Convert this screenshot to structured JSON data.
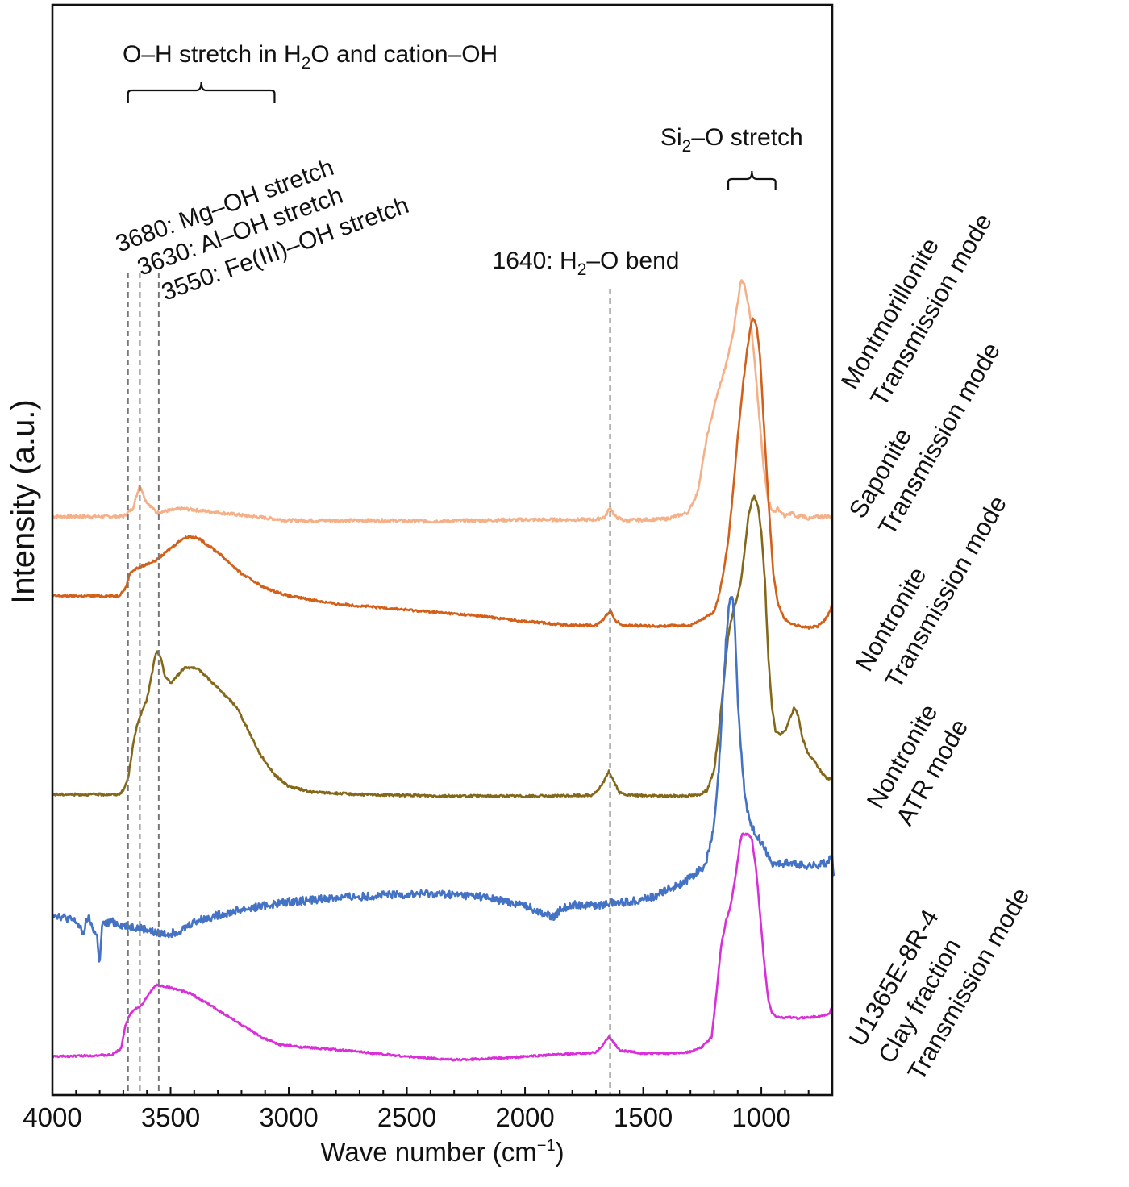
{
  "chart_data": {
    "type": "line",
    "xlabel": {
      "text": "Wave number (cm",
      "sup": "−1",
      "tail": ")"
    },
    "ylabel": "Intensity (a.u.)",
    "xlim": [
      4000,
      700
    ],
    "x_ticks": [
      4000,
      3500,
      3000,
      2500,
      2000,
      1500,
      1000
    ],
    "x_tick_labels": [
      "4000",
      "3500",
      "3000",
      "2500",
      "2000",
      "1500",
      "1000"
    ],
    "grid": false,
    "reference_lines": [
      3680,
      3630,
      3550,
      1640
    ],
    "annotations": {
      "oh_group": {
        "pre": "O–H stretch in H",
        "sub": "2",
        "post": "O and cation–OH",
        "range": [
          3680,
          3060
        ]
      },
      "si_group": {
        "pre": "Si",
        "sub": "2",
        "post": "–O stretch",
        "range": [
          1140,
          940
        ]
      },
      "mg": "3680: Mg–OH stretch",
      "al": "3630: Al–OH stretch",
      "fe": "3550: Fe(III)–OH stretch",
      "bend": {
        "pre": "1640: H",
        "sub": "2",
        "post": "–O bend"
      }
    },
    "series": [
      {
        "key": "montmorillonite",
        "label_lines": [
          "Montmorillonite",
          "Transmission mode"
        ],
        "color": "#f5b088",
        "noise": 0.002,
        "points": [
          [
            4000,
            0.7
          ],
          [
            3700,
            0.7
          ],
          [
            3660,
            0.71
          ],
          [
            3630,
            0.74
          ],
          [
            3605,
            0.72
          ],
          [
            3560,
            0.705
          ],
          [
            3450,
            0.71
          ],
          [
            3300,
            0.705
          ],
          [
            3000,
            0.695
          ],
          [
            2600,
            0.695
          ],
          [
            2400,
            0.694
          ],
          [
            2000,
            0.696
          ],
          [
            1700,
            0.696
          ],
          [
            1660,
            0.7
          ],
          [
            1640,
            0.712
          ],
          [
            1620,
            0.7
          ],
          [
            1580,
            0.695
          ],
          [
            1400,
            0.697
          ],
          [
            1310,
            0.705
          ],
          [
            1270,
            0.73
          ],
          [
            1230,
            0.8
          ],
          [
            1190,
            0.85
          ],
          [
            1150,
            0.89
          ],
          [
            1120,
            0.93
          ],
          [
            1100,
            0.97
          ],
          [
            1085,
            1.0
          ],
          [
            1070,
            0.99
          ],
          [
            1050,
            0.96
          ],
          [
            1030,
            0.9
          ],
          [
            1010,
            0.83
          ],
          [
            990,
            0.76
          ],
          [
            970,
            0.72
          ],
          [
            950,
            0.705
          ],
          [
            930,
            0.71
          ],
          [
            900,
            0.7
          ],
          [
            870,
            0.705
          ],
          [
            850,
            0.698
          ],
          [
            830,
            0.702
          ],
          [
            800,
            0.697
          ],
          [
            760,
            0.7
          ],
          [
            700,
            0.7
          ]
        ]
      },
      {
        "key": "saponite",
        "label_lines": [
          "Saponite",
          "Transmission mode"
        ],
        "color": "#d2601a",
        "noise": 0.0015,
        "points": [
          [
            4000,
            0.6
          ],
          [
            3720,
            0.6
          ],
          [
            3690,
            0.61
          ],
          [
            3670,
            0.63
          ],
          [
            3640,
            0.635
          ],
          [
            3600,
            0.64
          ],
          [
            3560,
            0.645
          ],
          [
            3500,
            0.66
          ],
          [
            3450,
            0.672
          ],
          [
            3420,
            0.675
          ],
          [
            3380,
            0.672
          ],
          [
            3300,
            0.655
          ],
          [
            3200,
            0.628
          ],
          [
            3100,
            0.61
          ],
          [
            3000,
            0.6
          ],
          [
            2800,
            0.59
          ],
          [
            2600,
            0.585
          ],
          [
            2400,
            0.58
          ],
          [
            2200,
            0.575
          ],
          [
            2000,
            0.568
          ],
          [
            1800,
            0.563
          ],
          [
            1700,
            0.563
          ],
          [
            1670,
            0.57
          ],
          [
            1640,
            0.582
          ],
          [
            1615,
            0.568
          ],
          [
            1580,
            0.563
          ],
          [
            1450,
            0.562
          ],
          [
            1300,
            0.563
          ],
          [
            1250,
            0.57
          ],
          [
            1200,
            0.58
          ],
          [
            1180,
            0.6
          ],
          [
            1160,
            0.63
          ],
          [
            1140,
            0.67
          ],
          [
            1120,
            0.73
          ],
          [
            1100,
            0.8
          ],
          [
            1080,
            0.86
          ],
          [
            1060,
            0.91
          ],
          [
            1045,
            0.94
          ],
          [
            1035,
            0.95
          ],
          [
            1020,
            0.94
          ],
          [
            1005,
            0.9
          ],
          [
            990,
            0.82
          ],
          [
            970,
            0.72
          ],
          [
            950,
            0.63
          ],
          [
            930,
            0.59
          ],
          [
            900,
            0.57
          ],
          [
            870,
            0.565
          ],
          [
            850,
            0.563
          ],
          [
            800,
            0.56
          ],
          [
            760,
            0.562
          ],
          [
            730,
            0.57
          ],
          [
            710,
            0.58
          ],
          [
            700,
            0.59
          ]
        ]
      },
      {
        "key": "nontronite_trans",
        "label_lines": [
          "Nontronite",
          "Transmission mode"
        ],
        "color": "#84681a",
        "noise": 0.0015,
        "points": [
          [
            4000,
            0.35
          ],
          [
            3720,
            0.35
          ],
          [
            3700,
            0.355
          ],
          [
            3680,
            0.37
          ],
          [
            3660,
            0.41
          ],
          [
            3640,
            0.44
          ],
          [
            3620,
            0.455
          ],
          [
            3600,
            0.47
          ],
          [
            3580,
            0.5
          ],
          [
            3565,
            0.525
          ],
          [
            3555,
            0.53
          ],
          [
            3540,
            0.52
          ],
          [
            3525,
            0.5
          ],
          [
            3500,
            0.49
          ],
          [
            3470,
            0.5
          ],
          [
            3440,
            0.51
          ],
          [
            3410,
            0.51
          ],
          [
            3370,
            0.505
          ],
          [
            3320,
            0.49
          ],
          [
            3270,
            0.475
          ],
          [
            3220,
            0.46
          ],
          [
            3170,
            0.43
          ],
          [
            3120,
            0.4
          ],
          [
            3060,
            0.375
          ],
          [
            3000,
            0.36
          ],
          [
            2900,
            0.353
          ],
          [
            2700,
            0.35
          ],
          [
            2500,
            0.349
          ],
          [
            2300,
            0.348
          ],
          [
            2100,
            0.348
          ],
          [
            1900,
            0.348
          ],
          [
            1720,
            0.349
          ],
          [
            1690,
            0.355
          ],
          [
            1660,
            0.37
          ],
          [
            1645,
            0.38
          ],
          [
            1630,
            0.37
          ],
          [
            1600,
            0.352
          ],
          [
            1560,
            0.349
          ],
          [
            1400,
            0.348
          ],
          [
            1270,
            0.349
          ],
          [
            1230,
            0.355
          ],
          [
            1200,
            0.38
          ],
          [
            1180,
            0.43
          ],
          [
            1160,
            0.49
          ],
          [
            1140,
            0.55
          ],
          [
            1120,
            0.58
          ],
          [
            1100,
            0.6
          ],
          [
            1085,
            0.62
          ],
          [
            1070,
            0.66
          ],
          [
            1055,
            0.7
          ],
          [
            1040,
            0.72
          ],
          [
            1030,
            0.725
          ],
          [
            1015,
            0.715
          ],
          [
            1000,
            0.68
          ],
          [
            985,
            0.62
          ],
          [
            970,
            0.52
          ],
          [
            955,
            0.46
          ],
          [
            940,
            0.43
          ],
          [
            920,
            0.425
          ],
          [
            900,
            0.43
          ],
          [
            880,
            0.445
          ],
          [
            860,
            0.46
          ],
          [
            845,
            0.45
          ],
          [
            825,
            0.42
          ],
          [
            800,
            0.4
          ],
          [
            770,
            0.39
          ],
          [
            740,
            0.375
          ],
          [
            720,
            0.37
          ],
          [
            700,
            0.37
          ]
        ]
      },
      {
        "key": "nontronite_atr",
        "label_lines": [
          "Nontronite",
          "ATR mode"
        ],
        "color": "#4472c4",
        "noise": 0.005,
        "points": [
          [
            4000,
            0.2
          ],
          [
            3950,
            0.195
          ],
          [
            3900,
            0.19
          ],
          [
            3870,
            0.175
          ],
          [
            3850,
            0.195
          ],
          [
            3810,
            0.17
          ],
          [
            3800,
            0.135
          ],
          [
            3790,
            0.185
          ],
          [
            3750,
            0.19
          ],
          [
            3700,
            0.185
          ],
          [
            3650,
            0.183
          ],
          [
            3600,
            0.18
          ],
          [
            3560,
            0.175
          ],
          [
            3500,
            0.175
          ],
          [
            3450,
            0.18
          ],
          [
            3400,
            0.19
          ],
          [
            3300,
            0.198
          ],
          [
            3200,
            0.205
          ],
          [
            3000,
            0.215
          ],
          [
            2800,
            0.22
          ],
          [
            2600,
            0.223
          ],
          [
            2400,
            0.225
          ],
          [
            2200,
            0.222
          ],
          [
            2100,
            0.216
          ],
          [
            2000,
            0.21
          ],
          [
            1920,
            0.2
          ],
          [
            1880,
            0.195
          ],
          [
            1850,
            0.205
          ],
          [
            1800,
            0.212
          ],
          [
            1700,
            0.21
          ],
          [
            1650,
            0.213
          ],
          [
            1550,
            0.215
          ],
          [
            1450,
            0.222
          ],
          [
            1400,
            0.23
          ],
          [
            1350,
            0.236
          ],
          [
            1300,
            0.245
          ],
          [
            1260,
            0.255
          ],
          [
            1240,
            0.26
          ],
          [
            1220,
            0.28
          ],
          [
            1200,
            0.31
          ],
          [
            1180,
            0.38
          ],
          [
            1165,
            0.46
          ],
          [
            1150,
            0.54
          ],
          [
            1140,
            0.58
          ],
          [
            1130,
            0.6
          ],
          [
            1120,
            0.595
          ],
          [
            1110,
            0.55
          ],
          [
            1100,
            0.47
          ],
          [
            1085,
            0.4
          ],
          [
            1070,
            0.35
          ],
          [
            1050,
            0.315
          ],
          [
            1020,
            0.3
          ],
          [
            1000,
            0.29
          ],
          [
            980,
            0.28
          ],
          [
            960,
            0.265
          ],
          [
            940,
            0.262
          ],
          [
            900,
            0.264
          ],
          [
            860,
            0.262
          ],
          [
            820,
            0.26
          ],
          [
            780,
            0.26
          ],
          [
            750,
            0.262
          ],
          [
            720,
            0.265
          ],
          [
            700,
            0.27
          ],
          [
            690,
            0.24
          ]
        ]
      },
      {
        "key": "u1365e",
        "label_lines": [
          "U1365E-8R-4",
          "Clay fraction",
          "Transmission mode"
        ],
        "color": "#d82fd8",
        "noise": 0.0012,
        "points": [
          [
            4000,
            0.02
          ],
          [
            3750,
            0.022
          ],
          [
            3710,
            0.03
          ],
          [
            3690,
            0.06
          ],
          [
            3670,
            0.075
          ],
          [
            3650,
            0.08
          ],
          [
            3620,
            0.085
          ],
          [
            3590,
            0.1
          ],
          [
            3560,
            0.11
          ],
          [
            3520,
            0.108
          ],
          [
            3480,
            0.105
          ],
          [
            3420,
            0.1
          ],
          [
            3350,
            0.088
          ],
          [
            3280,
            0.075
          ],
          [
            3200,
            0.06
          ],
          [
            3120,
            0.045
          ],
          [
            3040,
            0.035
          ],
          [
            2950,
            0.032
          ],
          [
            2850,
            0.03
          ],
          [
            2700,
            0.026
          ],
          [
            2500,
            0.02
          ],
          [
            2300,
            0.016
          ],
          [
            2100,
            0.018
          ],
          [
            1900,
            0.022
          ],
          [
            1750,
            0.024
          ],
          [
            1700,
            0.025
          ],
          [
            1670,
            0.035
          ],
          [
            1645,
            0.045
          ],
          [
            1625,
            0.038
          ],
          [
            1600,
            0.028
          ],
          [
            1500,
            0.024
          ],
          [
            1400,
            0.024
          ],
          [
            1300,
            0.026
          ],
          [
            1250,
            0.032
          ],
          [
            1210,
            0.045
          ],
          [
            1190,
            0.1
          ],
          [
            1170,
            0.16
          ],
          [
            1150,
            0.19
          ],
          [
            1130,
            0.21
          ],
          [
            1110,
            0.245
          ],
          [
            1090,
            0.29
          ],
          [
            1080,
            0.3
          ],
          [
            1060,
            0.3
          ],
          [
            1040,
            0.295
          ],
          [
            1020,
            0.25
          ],
          [
            1000,
            0.18
          ],
          [
            985,
            0.13
          ],
          [
            970,
            0.09
          ],
          [
            955,
            0.075
          ],
          [
            935,
            0.07
          ],
          [
            910,
            0.069
          ],
          [
            880,
            0.07
          ],
          [
            850,
            0.068
          ],
          [
            820,
            0.069
          ],
          [
            780,
            0.07
          ],
          [
            740,
            0.071
          ],
          [
            710,
            0.075
          ],
          [
            700,
            0.085
          ]
        ]
      }
    ]
  }
}
